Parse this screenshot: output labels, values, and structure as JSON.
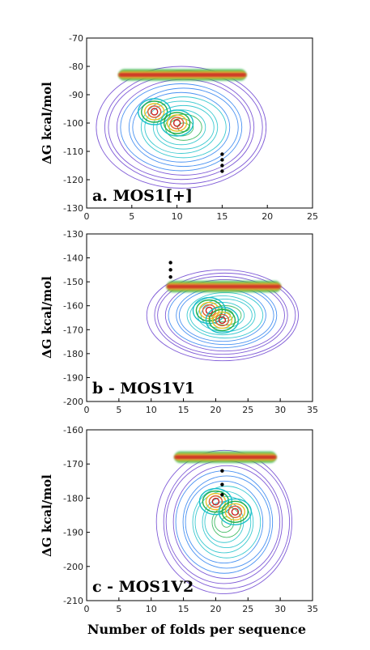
{
  "figure": {
    "xlabel": "Number of folds per sequence"
  },
  "chart_data": [
    {
      "type": "heatmap",
      "title": "a. MOS1[+]",
      "xlabel": "",
      "ylabel": "ΔG kcal/mol",
      "xlim": [
        0,
        25
      ],
      "ylim": [
        -130,
        -70
      ],
      "xticks": [
        "0",
        "5",
        "10",
        "15",
        "20",
        "25"
      ],
      "yticks": [
        "-70",
        "-80",
        "-90",
        "-100",
        "-110",
        "-120",
        "-130"
      ],
      "contour_region": {
        "x": [
          1.2,
          20
        ],
        "y": [
          -123,
          -80
        ]
      },
      "hotspots": [
        {
          "x": 8,
          "y": -83,
          "level": "high"
        },
        {
          "x": 7.5,
          "y": -96,
          "level": "high"
        },
        {
          "x": 10,
          "y": -100,
          "level": "high"
        }
      ],
      "markers": [
        {
          "x": 15,
          "y": -111
        },
        {
          "x": 15,
          "y": -113
        },
        {
          "x": 15,
          "y": -115
        },
        {
          "x": 15,
          "y": -117
        }
      ],
      "grid": false,
      "colors": [
        "#6a3fd0",
        "#2a7ff0",
        "#19c0c8",
        "#22b04a",
        "#e8c02a",
        "#e06030",
        "#c82020"
      ]
    },
    {
      "type": "heatmap",
      "title": "b - MOS1V1",
      "xlabel": "",
      "ylabel": "ΔG kcal/mol",
      "xlim": [
        0,
        35
      ],
      "ylim": [
        -200,
        -130
      ],
      "xticks": [
        "0",
        "5",
        "10",
        "15",
        "20",
        "25",
        "30",
        "35"
      ],
      "yticks": [
        "-130",
        "-140",
        "-150",
        "-160",
        "-170",
        "-180",
        "-190",
        "-200"
      ],
      "contour_region": {
        "x": [
          9.5,
          33
        ],
        "y": [
          -183,
          -145
        ]
      },
      "hotspots": [
        {
          "x": 18,
          "y": -152,
          "level": "high"
        },
        {
          "x": 19,
          "y": -162,
          "level": "high"
        },
        {
          "x": 21,
          "y": -166,
          "level": "high"
        }
      ],
      "markers": [
        {
          "x": 13,
          "y": -142
        },
        {
          "x": 13,
          "y": -145
        },
        {
          "x": 13,
          "y": -148
        }
      ],
      "grid": false,
      "colors": [
        "#6a3fd0",
        "#2a7ff0",
        "#19c0c8",
        "#22b04a",
        "#e8c02a",
        "#e06030",
        "#c82020"
      ]
    },
    {
      "type": "heatmap",
      "title": "c - MOS1V2",
      "xlabel": "Number of folds per sequence",
      "ylabel": "ΔG kcal/mol",
      "xlim": [
        0,
        35
      ],
      "ylim": [
        -210,
        -160
      ],
      "xticks": [
        "0",
        "5",
        "10",
        "15",
        "20",
        "25",
        "30",
        "35"
      ],
      "yticks": [
        "-160",
        "-170",
        "-180",
        "-190",
        "-200",
        "-210"
      ],
      "contour_region": {
        "x": [
          11,
          32
        ],
        "y": [
          -208,
          -166
        ]
      },
      "hotspots": [
        {
          "x": 21,
          "y": -168,
          "level": "high"
        },
        {
          "x": 20,
          "y": -181,
          "level": "high"
        },
        {
          "x": 23,
          "y": -184,
          "level": "high"
        }
      ],
      "markers": [
        {
          "x": 21,
          "y": -172
        },
        {
          "x": 21,
          "y": -176
        },
        {
          "x": 21,
          "y": -179
        }
      ],
      "grid": false,
      "colors": [
        "#6a3fd0",
        "#2a7ff0",
        "#19c0c8",
        "#22b04a",
        "#e8c02a",
        "#e06030",
        "#c82020"
      ]
    }
  ]
}
